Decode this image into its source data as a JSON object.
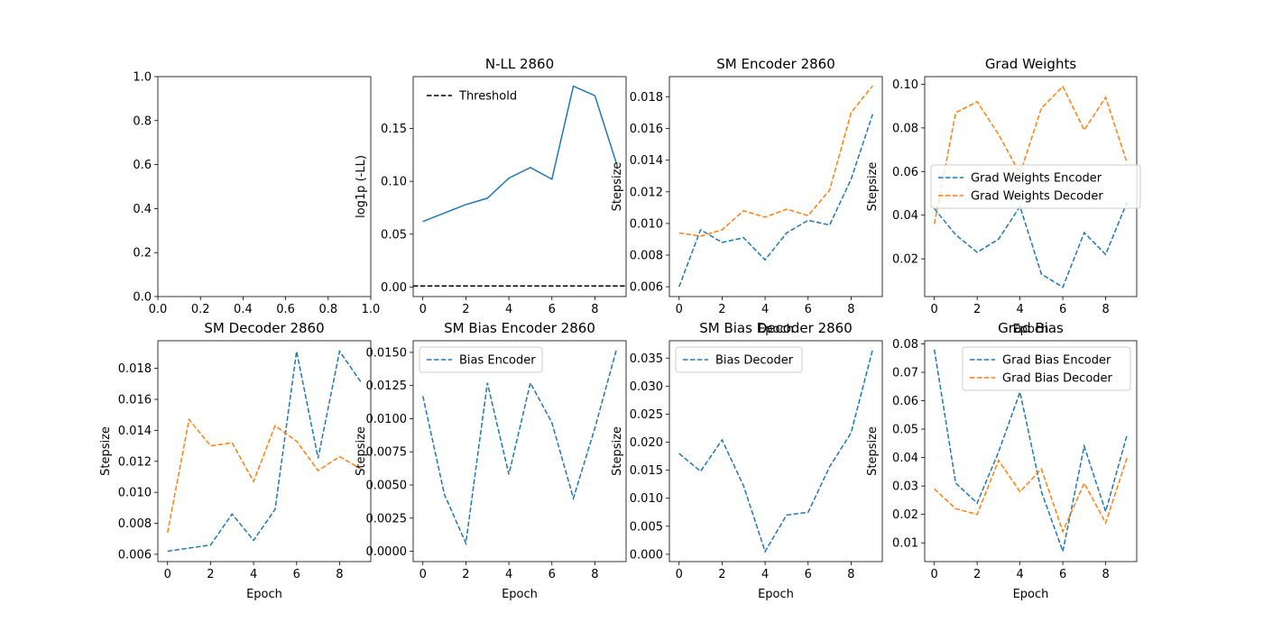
{
  "colors": {
    "blue": "#1f77b4",
    "orange": "#ff7f0e",
    "black": "#000000"
  },
  "chart_data": [
    {
      "type": "line",
      "title": "",
      "xlabel": "",
      "ylabel": "",
      "xlim": [
        0,
        1
      ],
      "ylim": [
        0,
        1
      ],
      "xticks": [
        0.0,
        0.2,
        0.4,
        0.6,
        0.8,
        1.0
      ],
      "xtick_labels": [
        "0.0",
        "0.2",
        "0.4",
        "0.6",
        "0.8",
        "1.0"
      ],
      "yticks": [
        0.0,
        0.2,
        0.4,
        0.6,
        0.8,
        1.0
      ],
      "ytick_labels": [
        "0.0",
        "0.2",
        "0.4",
        "0.6",
        "0.8",
        "1.0"
      ],
      "series": []
    },
    {
      "type": "line",
      "title": "N-LL 2860",
      "xlabel": "",
      "ylabel": "log1p (-LL)",
      "xlim": [
        -0.45,
        9.45
      ],
      "ylim": [
        -0.009,
        0.199
      ],
      "xticks": [
        0,
        2,
        4,
        6,
        8
      ],
      "xtick_labels": [
        "0",
        "2",
        "4",
        "6",
        "8"
      ],
      "yticks": [
        0.0,
        0.05,
        0.1,
        0.15
      ],
      "ytick_labels": [
        "0.00",
        "0.05",
        "0.10",
        "0.15"
      ],
      "legend": "upper-left",
      "series": [
        {
          "x": [
            0,
            1,
            2,
            3,
            4,
            5,
            6,
            7,
            8,
            9
          ],
          "values": [
            0.062,
            0.07,
            0.078,
            0.084,
            0.103,
            0.113,
            0.102,
            0.19,
            0.181,
            0.117
          ],
          "color": "#1f77b4",
          "dashed": false
        },
        {
          "name": "Threshold",
          "x": [
            -0.45,
            9.45
          ],
          "values": [
            0.001,
            0.001
          ],
          "color": "#000000",
          "dashed": true
        }
      ]
    },
    {
      "type": "line",
      "title": "SM Encoder 2860",
      "xlabel": "Epoch",
      "ylabel": "Stepsize",
      "xlim": [
        -0.45,
        9.45
      ],
      "ylim": [
        0.00538,
        0.01928
      ],
      "xticks": [
        0,
        2,
        4,
        6,
        8
      ],
      "xtick_labels": [
        "0",
        "2",
        "4",
        "6",
        "8"
      ],
      "yticks": [
        0.006,
        0.008,
        0.01,
        0.012,
        0.014,
        0.016,
        0.018
      ],
      "ytick_labels": [
        "0.006",
        "0.008",
        "0.010",
        "0.012",
        "0.014",
        "0.016",
        "0.018"
      ],
      "series": [
        {
          "x": [
            0,
            1,
            2,
            3,
            4,
            5,
            6,
            7,
            8,
            9
          ],
          "values": [
            0.006,
            0.0096,
            0.0088,
            0.0091,
            0.0077,
            0.0094,
            0.0102,
            0.0099,
            0.0128,
            0.0169
          ],
          "color": "#1f77b4",
          "dashed": true
        },
        {
          "x": [
            0,
            1,
            2,
            3,
            4,
            5,
            6,
            7,
            8,
            9
          ],
          "values": [
            0.0094,
            0.0092,
            0.0096,
            0.0108,
            0.0104,
            0.0109,
            0.0105,
            0.0121,
            0.017,
            0.0187
          ],
          "color": "#ff7f0e",
          "dashed": true
        }
      ]
    },
    {
      "type": "line",
      "title": "Grad Weights",
      "xlabel": "Epoch",
      "ylabel": "Stepsize",
      "xlim": [
        -0.45,
        9.45
      ],
      "ylim": [
        0.0027,
        0.1035
      ],
      "xticks": [
        0,
        2,
        4,
        6,
        8
      ],
      "xtick_labels": [
        "0",
        "2",
        "4",
        "6",
        "8"
      ],
      "yticks": [
        0.02,
        0.04,
        0.06,
        0.08,
        0.1
      ],
      "ytick_labels": [
        "0.02",
        "0.04",
        "0.06",
        "0.08",
        "0.10"
      ],
      "legend": "center-left",
      "series": [
        {
          "name": "Grad Weights Encoder",
          "x": [
            0,
            1,
            2,
            3,
            4,
            5,
            6,
            7,
            8,
            9
          ],
          "values": [
            0.043,
            0.031,
            0.023,
            0.029,
            0.044,
            0.013,
            0.007,
            0.032,
            0.022,
            0.046
          ],
          "color": "#1f77b4",
          "dashed": true
        },
        {
          "name": "Grad Weights Decoder",
          "x": [
            0,
            1,
            2,
            3,
            4,
            5,
            6,
            7,
            8,
            9
          ],
          "values": [
            0.036,
            0.087,
            0.092,
            0.077,
            0.059,
            0.089,
            0.099,
            0.079,
            0.094,
            0.064
          ],
          "color": "#ff7f0e",
          "dashed": true
        }
      ]
    },
    {
      "type": "line",
      "title": "SM Decoder 2860",
      "xlabel": "Epoch",
      "ylabel": "Stepsize",
      "xlim": [
        -0.45,
        9.45
      ],
      "ylim": [
        0.00553,
        0.01978
      ],
      "xticks": [
        0,
        2,
        4,
        6,
        8
      ],
      "xtick_labels": [
        "0",
        "2",
        "4",
        "6",
        "8"
      ],
      "yticks": [
        0.006,
        0.008,
        0.01,
        0.012,
        0.014,
        0.016,
        0.018
      ],
      "ytick_labels": [
        "0.006",
        "0.008",
        "0.010",
        "0.012",
        "0.014",
        "0.016",
        "0.018"
      ],
      "series": [
        {
          "x": [
            0,
            1,
            2,
            3,
            4,
            5,
            6,
            7,
            8,
            9
          ],
          "values": [
            0.0062,
            0.0064,
            0.0066,
            0.0086,
            0.0069,
            0.0089,
            0.0191,
            0.0122,
            0.0191,
            0.0171
          ],
          "color": "#1f77b4",
          "dashed": true
        },
        {
          "x": [
            0,
            1,
            2,
            3,
            4,
            5,
            6,
            7,
            8,
            9
          ],
          "values": [
            0.0074,
            0.0147,
            0.013,
            0.0132,
            0.0107,
            0.0143,
            0.0133,
            0.0114,
            0.0123,
            0.0115
          ],
          "color": "#ff7f0e",
          "dashed": true
        }
      ]
    },
    {
      "type": "line",
      "title": "SM Bias Encoder 2860",
      "xlabel": "Epoch",
      "ylabel": "Stepsize",
      "xlim": [
        -0.45,
        9.45
      ],
      "ylim": [
        -0.00078,
        0.01588
      ],
      "xticks": [
        0,
        2,
        4,
        6,
        8
      ],
      "xtick_labels": [
        "0",
        "2",
        "4",
        "6",
        "8"
      ],
      "yticks": [
        0.0,
        0.0025,
        0.005,
        0.0075,
        0.01,
        0.0125,
        0.015
      ],
      "ytick_labels": [
        "0.0000",
        "0.0025",
        "0.0050",
        "0.0075",
        "0.0100",
        "0.0125",
        "0.0150"
      ],
      "legend": "upper-left",
      "series": [
        {
          "name": "Bias Encoder",
          "x": [
            0,
            1,
            2,
            3,
            4,
            5,
            6,
            7,
            8,
            9
          ],
          "values": [
            0.0117,
            0.0043,
            0.0006,
            0.0127,
            0.0058,
            0.0127,
            0.0097,
            0.004,
            0.0093,
            0.0152
          ],
          "color": "#1f77b4",
          "dashed": true
        }
      ]
    },
    {
      "type": "line",
      "title": "SM Bias Decoder 2860",
      "xlabel": "Epoch",
      "ylabel": "Stepsize",
      "xlim": [
        -0.45,
        9.45
      ],
      "ylim": [
        -0.0013,
        0.0381
      ],
      "xticks": [
        0,
        2,
        4,
        6,
        8
      ],
      "xtick_labels": [
        "0",
        "2",
        "4",
        "6",
        "8"
      ],
      "yticks": [
        0.0,
        0.005,
        0.01,
        0.015,
        0.02,
        0.025,
        0.03,
        0.035
      ],
      "ytick_labels": [
        "0.000",
        "0.005",
        "0.010",
        "0.015",
        "0.020",
        "0.025",
        "0.030",
        "0.035"
      ],
      "legend": "upper-left",
      "series": [
        {
          "name": "Bias Decoder",
          "x": [
            0,
            1,
            2,
            3,
            4,
            5,
            6,
            7,
            8,
            9
          ],
          "values": [
            0.018,
            0.0148,
            0.0204,
            0.0122,
            0.0005,
            0.007,
            0.0075,
            0.0156,
            0.0217,
            0.0365
          ],
          "color": "#1f77b4",
          "dashed": true
        }
      ]
    },
    {
      "type": "line",
      "title": "Grad Bias",
      "xlabel": "Epoch",
      "ylabel": "Stepsize",
      "xlim": [
        -0.45,
        9.45
      ],
      "ylim": [
        0.0034,
        0.0811
      ],
      "xticks": [
        0,
        2,
        4,
        6,
        8
      ],
      "xtick_labels": [
        "0",
        "2",
        "4",
        "6",
        "8"
      ],
      "yticks": [
        0.01,
        0.02,
        0.03,
        0.04,
        0.05,
        0.06,
        0.07,
        0.08
      ],
      "ytick_labels": [
        "0.01",
        "0.02",
        "0.03",
        "0.04",
        "0.05",
        "0.06",
        "0.07",
        "0.08"
      ],
      "legend": "upper-right",
      "series": [
        {
          "name": "Grad Bias Encoder",
          "x": [
            0,
            1,
            2,
            3,
            4,
            5,
            6,
            7,
            8,
            9
          ],
          "values": [
            0.078,
            0.031,
            0.024,
            0.042,
            0.063,
            0.028,
            0.007,
            0.044,
            0.021,
            0.048
          ],
          "color": "#1f77b4",
          "dashed": true
        },
        {
          "name": "Grad Bias Decoder",
          "x": [
            0,
            1,
            2,
            3,
            4,
            5,
            6,
            7,
            8,
            9
          ],
          "values": [
            0.029,
            0.022,
            0.02,
            0.039,
            0.028,
            0.036,
            0.014,
            0.031,
            0.017,
            0.04
          ],
          "color": "#ff7f0e",
          "dashed": true
        }
      ]
    }
  ]
}
